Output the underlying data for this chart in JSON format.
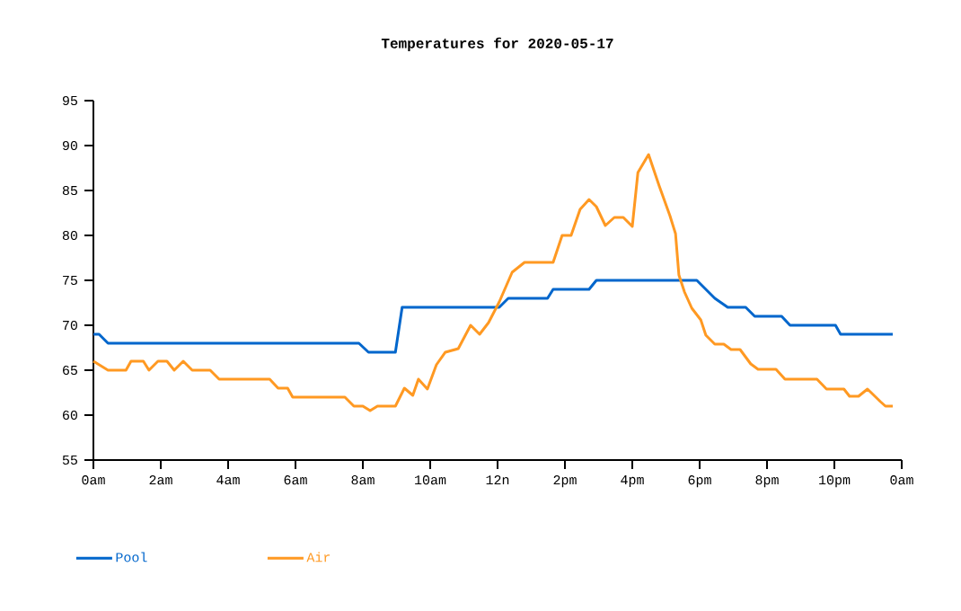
{
  "chart_data": {
    "type": "line",
    "title": "Temperatures for 2020-05-17",
    "xlim": [
      "2020-05-17T00:00",
      "2020-05-18T00:00"
    ],
    "ylim": [
      55,
      95
    ],
    "xticks": [
      {
        "value": "2020-05-17T00:00",
        "label": "0am"
      },
      {
        "value": "2020-05-17T02:00",
        "label": "2am"
      },
      {
        "value": "2020-05-17T04:00",
        "label": "4am"
      },
      {
        "value": "2020-05-17T06:00",
        "label": "6am"
      },
      {
        "value": "2020-05-17T08:00",
        "label": "8am"
      },
      {
        "value": "2020-05-17T10:00",
        "label": "10am"
      },
      {
        "value": "2020-05-17T12:00",
        "label": "12n"
      },
      {
        "value": "2020-05-17T14:00",
        "label": "2pm"
      },
      {
        "value": "2020-05-17T16:00",
        "label": "4pm"
      },
      {
        "value": "2020-05-17T18:00",
        "label": "6pm"
      },
      {
        "value": "2020-05-17T20:00",
        "label": "8pm"
      },
      {
        "value": "2020-05-17T22:00",
        "label": "10pm"
      },
      {
        "value": "2020-05-18T00:00",
        "label": "0am"
      }
    ],
    "yticks": [
      55,
      60,
      65,
      70,
      75,
      80,
      85,
      90,
      95
    ],
    "grid": false,
    "legend": "bottom left",
    "marker": "none",
    "line_style": "solid",
    "series": [
      {
        "name": "Pool",
        "color": "#0066cc",
        "x": [
          "2020-05-17T00:00",
          "2020-05-17T00:10",
          "2020-05-17T00:26",
          "2020-05-17T07:53",
          "2020-05-17T08:10",
          "2020-05-17T08:58",
          "2020-05-17T09:10",
          "2020-05-17T12:03",
          "2020-05-17T12:19",
          "2020-05-17T13:29",
          "2020-05-17T13:39",
          "2020-05-17T14:43",
          "2020-05-17T14:56",
          "2020-05-17T17:55",
          "2020-05-17T18:27",
          "2020-05-17T18:50",
          "2020-05-17T19:22",
          "2020-05-17T19:38",
          "2020-05-17T20:26",
          "2020-05-17T20:41",
          "2020-05-17T22:02",
          "2020-05-17T22:11",
          "2020-05-17T23:44"
        ],
        "values": [
          69,
          69,
          68,
          68,
          67,
          67,
          72,
          72,
          73,
          73,
          74,
          74,
          75,
          75,
          73,
          72,
          72,
          71,
          71,
          70,
          70,
          69,
          69
        ]
      },
      {
        "name": "Air",
        "color": "#ff9922",
        "x": [
          "2020-05-17T00:00",
          "2020-05-17T00:26",
          "2020-05-17T00:58",
          "2020-05-17T01:07",
          "2020-05-17T01:29",
          "2020-05-17T01:39",
          "2020-05-17T01:55",
          "2020-05-17T02:11",
          "2020-05-17T02:24",
          "2020-05-17T02:40",
          "2020-05-17T02:56",
          "2020-05-17T03:28",
          "2020-05-17T03:44",
          "2020-05-17T05:14",
          "2020-05-17T05:29",
          "2020-05-17T05:46",
          "2020-05-17T05:55",
          "2020-05-17T07:28",
          "2020-05-17T07:44",
          "2020-05-17T08:00",
          "2020-05-17T08:13",
          "2020-05-17T08:26",
          "2020-05-17T08:58",
          "2020-05-17T09:14",
          "2020-05-17T09:29",
          "2020-05-17T09:39",
          "2020-05-17T09:55",
          "2020-05-17T10:11",
          "2020-05-17T10:27",
          "2020-05-17T10:50",
          "2020-05-17T11:12",
          "2020-05-17T11:28",
          "2020-05-17T11:44",
          "2020-05-17T12:03",
          "2020-05-17T12:26",
          "2020-05-17T12:48",
          "2020-05-17T13:39",
          "2020-05-17T13:55",
          "2020-05-17T14:11",
          "2020-05-17T14:27",
          "2020-05-17T14:43",
          "2020-05-17T14:56",
          "2020-05-17T15:12",
          "2020-05-17T15:28",
          "2020-05-17T15:44",
          "2020-05-17T16:00",
          "2020-05-17T16:10",
          "2020-05-17T16:29",
          "2020-05-17T16:48",
          "2020-05-17T17:07",
          "2020-05-17T17:17",
          "2020-05-17T17:23",
          "2020-05-17T17:33",
          "2020-05-17T17:46",
          "2020-05-17T18:02",
          "2020-05-17T18:11",
          "2020-05-17T18:27",
          "2020-05-17T18:43",
          "2020-05-17T18:56",
          "2020-05-17T19:12",
          "2020-05-17T19:31",
          "2020-05-17T19:44",
          "2020-05-17T20:16",
          "2020-05-17T20:32",
          "2020-05-17T21:29",
          "2020-05-17T21:46",
          "2020-05-17T22:17",
          "2020-05-17T22:27",
          "2020-05-17T22:43",
          "2020-05-17T22:59",
          "2020-05-17T23:22",
          "2020-05-17T23:31",
          "2020-05-17T23:44"
        ],
        "values": [
          66,
          65,
          65,
          66,
          66,
          65,
          66,
          66,
          65,
          66,
          65,
          65,
          64,
          64,
          63,
          63,
          62,
          62,
          61,
          61,
          60.5,
          61,
          61,
          63,
          62.2,
          64,
          62.9,
          65.6,
          67,
          67.4,
          70,
          69,
          70.3,
          72.6,
          75.9,
          77,
          77,
          80,
          80,
          82.9,
          84,
          83.2,
          81.1,
          82,
          82,
          81,
          87,
          89,
          85.5,
          82.2,
          80.2,
          75.6,
          73.7,
          71.9,
          70.6,
          68.9,
          67.9,
          67.9,
          67.3,
          67.3,
          65.7,
          65.1,
          65.1,
          64,
          64,
          62.9,
          62.9,
          62.1,
          62.1,
          62.9,
          61.5,
          61,
          61
        ]
      }
    ]
  }
}
